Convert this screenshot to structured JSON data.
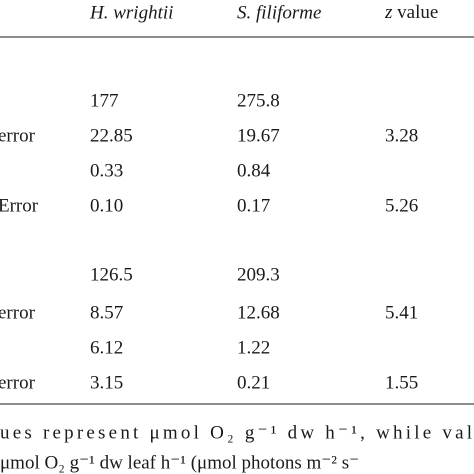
{
  "table": {
    "columns": [
      "H. wrightii",
      "S. filiforme"
    ],
    "z_column": {
      "symbol": "z",
      "text": "value"
    },
    "rows": [
      {
        "cells": [
          "177",
          "275.8"
        ]
      },
      {
        "label": "error",
        "cells": [
          "22.85",
          "19.67"
        ],
        "z": "3.28"
      },
      {
        "cells": [
          "0.33",
          "0.84"
        ]
      },
      {
        "label": "Error",
        "cells": [
          "0.10",
          "0.17"
        ],
        "z": "5.26"
      },
      {
        "cells": [
          "126.5",
          "209.3"
        ]
      },
      {
        "label": "error",
        "cells": [
          "8.57",
          "12.68"
        ],
        "z": "5.41"
      },
      {
        "cells": [
          "6.12",
          "1.22"
        ]
      },
      {
        "label": "error",
        "cells": [
          "3.15",
          "0.21"
        ],
        "z": "1.55"
      }
    ]
  },
  "footnote": [
    "ues represent μmol O₂ g⁻¹ dw h⁻¹, while val",
    "μmol O₂ g⁻¹ dw leaf h⁻¹ (μmol photons m⁻² s⁻"
  ]
}
